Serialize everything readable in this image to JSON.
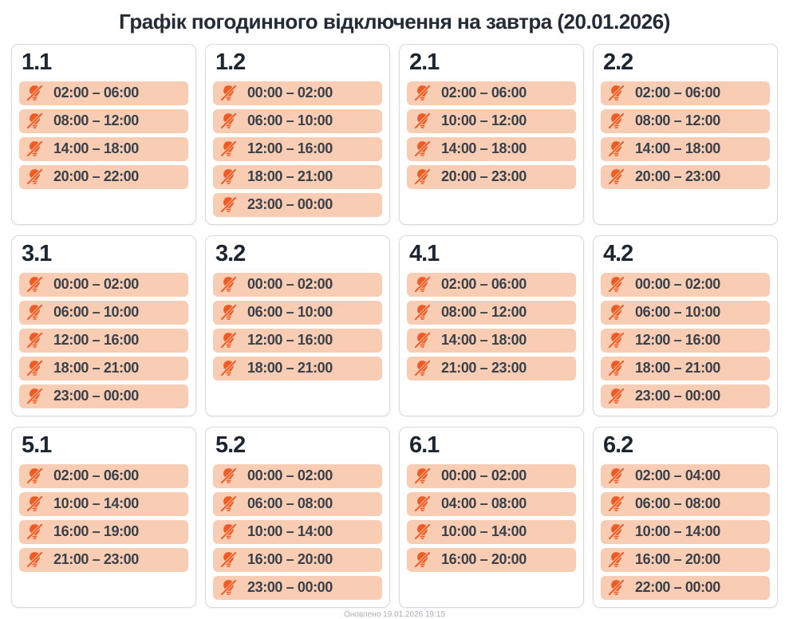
{
  "page": {
    "title": "Графік погодинного відключення на завтра (20.01.2026)",
    "updated": "Оновлено 19.01.2026 19:15"
  },
  "colors": {
    "accent_orange": "#f15a22",
    "slot_background": "#f9cdb3",
    "heading_text": "#1c2530",
    "time_text": "#39414b",
    "card_border": "#d9d9d9",
    "footer_text": "#a8aeb4"
  },
  "icon": {
    "name": "light-off-icon"
  },
  "cards": [
    {
      "label": "1.1",
      "slots": [
        "02:00 – 06:00",
        "08:00 – 12:00",
        "14:00 – 18:00",
        "20:00 – 22:00"
      ]
    },
    {
      "label": "1.2",
      "slots": [
        "00:00 – 02:00",
        "06:00 – 10:00",
        "12:00 – 16:00",
        "18:00 – 21:00",
        "23:00 – 00:00"
      ]
    },
    {
      "label": "2.1",
      "slots": [
        "02:00 – 06:00",
        "10:00 – 12:00",
        "14:00 – 18:00",
        "20:00 – 23:00"
      ]
    },
    {
      "label": "2.2",
      "slots": [
        "02:00 – 06:00",
        "08:00 – 12:00",
        "14:00 – 18:00",
        "20:00 – 23:00"
      ]
    },
    {
      "label": "3.1",
      "slots": [
        "00:00 – 02:00",
        "06:00 – 10:00",
        "12:00 – 16:00",
        "18:00 – 21:00",
        "23:00 – 00:00"
      ]
    },
    {
      "label": "3.2",
      "slots": [
        "00:00 – 02:00",
        "06:00 – 10:00",
        "12:00 – 16:00",
        "18:00 – 21:00"
      ]
    },
    {
      "label": "4.1",
      "slots": [
        "02:00 – 06:00",
        "08:00 – 12:00",
        "14:00 – 18:00",
        "21:00 – 23:00"
      ]
    },
    {
      "label": "4.2",
      "slots": [
        "00:00 – 02:00",
        "06:00 – 10:00",
        "12:00 – 16:00",
        "18:00 – 21:00",
        "23:00 – 00:00"
      ]
    },
    {
      "label": "5.1",
      "slots": [
        "02:00 – 06:00",
        "10:00 – 14:00",
        "16:00 – 19:00",
        "21:00 – 23:00"
      ]
    },
    {
      "label": "5.2",
      "slots": [
        "00:00 – 02:00",
        "06:00 – 08:00",
        "10:00 – 14:00",
        "16:00 – 20:00",
        "23:00 – 00:00"
      ]
    },
    {
      "label": "6.1",
      "slots": [
        "00:00 – 02:00",
        "04:00 – 08:00",
        "10:00 – 14:00",
        "16:00 – 20:00"
      ]
    },
    {
      "label": "6.2",
      "slots": [
        "02:00 – 04:00",
        "06:00 – 08:00",
        "10:00 – 14:00",
        "16:00 – 20:00",
        "22:00 – 00:00"
      ]
    }
  ]
}
